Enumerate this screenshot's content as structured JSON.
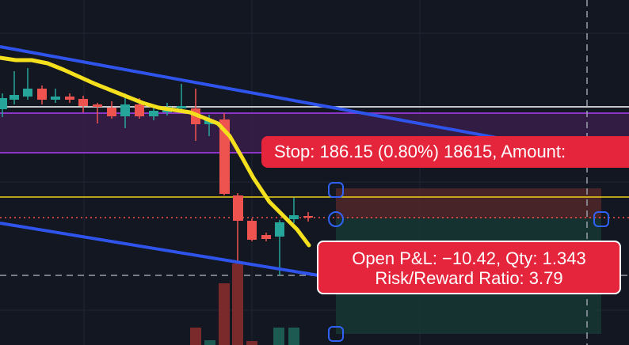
{
  "stop_label": "Stop: 186.15 (0.80%) 18615, Amount:",
  "position_label": {
    "line1": "Open P&L: −10.42, Qty: 1.343",
    "line2": "Risk/Reward Ratio: 3.79"
  },
  "colors": {
    "background": "#131722",
    "bull_candle": "#26a69a",
    "bear_candle": "#ef5350",
    "moving_average": "#f5e01d",
    "trend_channel": "#2f54eb",
    "label_red": "#e5253c",
    "zone_purple": "#7b2fa8",
    "stop_zone": "#4a2424",
    "target_zone": "#17302c"
  }
}
